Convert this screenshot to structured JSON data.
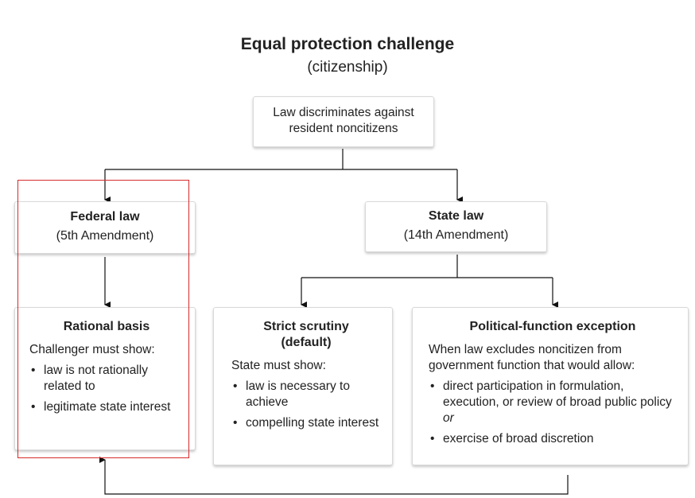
{
  "title": "Equal protection challenge",
  "subtitle": "(citizenship)",
  "root": {
    "text": "Law discriminates against resident noncitizens"
  },
  "federal": {
    "heading": "Federal law",
    "sub": "(5th Amendment)"
  },
  "state": {
    "heading": "State law",
    "sub": "(14th Amendment)"
  },
  "rational": {
    "heading": "Rational basis",
    "lead": "Challenger must show:",
    "bullets": [
      "law is not rationally related to",
      "legitimate state interest"
    ]
  },
  "strict": {
    "heading_line1": "Strict scrutiny",
    "heading_line2": "(default)",
    "lead": "State must show:",
    "bullets": [
      "law is necessary to achieve",
      "compelling state interest"
    ]
  },
  "political": {
    "heading": "Political-function exception",
    "lead": "When law excludes noncitizen from government function that would allow:",
    "bullet1_main": "direct participation in formulation, execution, or review of broad public policy ",
    "bullet1_or": "or",
    "bullet2": "exercise of broad discretion"
  },
  "bullet_char": "•",
  "colors": {
    "highlight": "#d62b2b",
    "box_border": "#d9d9d9",
    "text": "#222222"
  }
}
